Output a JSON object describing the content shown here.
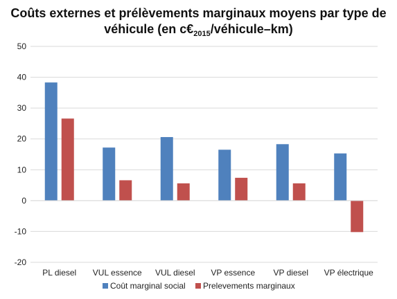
{
  "title": {
    "line1": "Coûts externes et prélèvements marginaux moyens par type de",
    "line2_prefix": "véhicule (en c€",
    "line2_sub": "2015",
    "line2_suffix": "/véhicule–km)"
  },
  "chart_data": {
    "type": "bar",
    "categories": [
      "PL diesel",
      "VUL essence",
      "VUL diesel",
      "VP essence",
      "VP diesel",
      "VP électrique"
    ],
    "series": [
      {
        "name": "Coût marginal social",
        "values": [
          38.3,
          17.2,
          20.6,
          16.5,
          18.3,
          15.3
        ],
        "color": "#4f81bd"
      },
      {
        "name": "Prelevements marginaux",
        "values": [
          26.6,
          6.6,
          5.6,
          7.4,
          5.6,
          -10.2
        ],
        "color": "#c0504d"
      }
    ],
    "ylim": [
      -20,
      50
    ],
    "yticks": [
      -20,
      -10,
      0,
      10,
      20,
      30,
      40,
      50
    ],
    "grid": true,
    "legend_position": "bottom"
  }
}
